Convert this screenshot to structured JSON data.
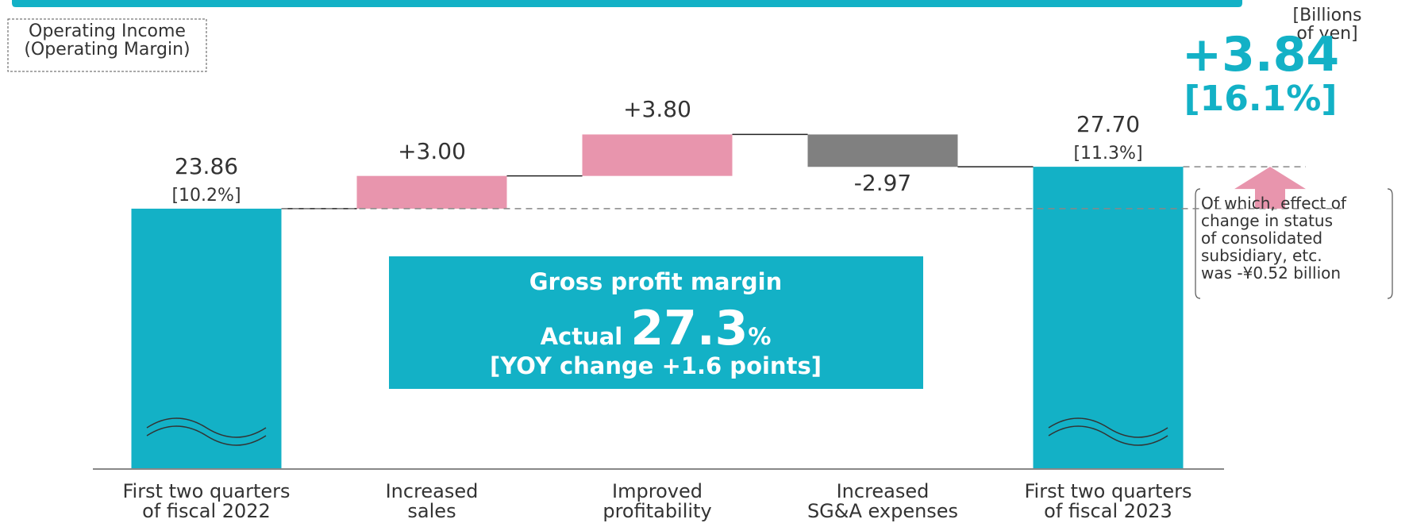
{
  "chart_data": {
    "type": "waterfall",
    "legend_box": "Operating Income\n(Operating Margin)",
    "unit": "[Billions of yen]",
    "categories": [
      "First two quarters\nof fiscal 2022",
      "Increased\nsales",
      "Improved\nprofitability",
      "Increased\nSG&A expenses",
      "First two quarters\nof fiscal 2023"
    ],
    "values": [
      23.86,
      3.0,
      3.8,
      -2.97,
      27.7
    ],
    "value_labels": [
      "23.86",
      "+3.00",
      "+3.80",
      "-2.97",
      "27.70"
    ],
    "colors": [
      "#13b1c6",
      "#e895ad",
      "#e895ad",
      "#808080",
      "#13b1c6"
    ],
    "start_margin": "[10.2%]",
    "end_margin": "[11.3%]",
    "change": {
      "value": 3.84,
      "label": "+3.84",
      "percent": "[16.1%]",
      "color": "#e895ad"
    },
    "note": "Of which, effect of\nchange in status\nof consolidated\nsubsidiary, etc.\nwas -¥0.52 billion",
    "highlight": {
      "line1": "Gross profit margin",
      "prefix": "Actual",
      "value": "27.3",
      "suffix": "%",
      "line3": "[YOY change +1.6 points]"
    }
  }
}
